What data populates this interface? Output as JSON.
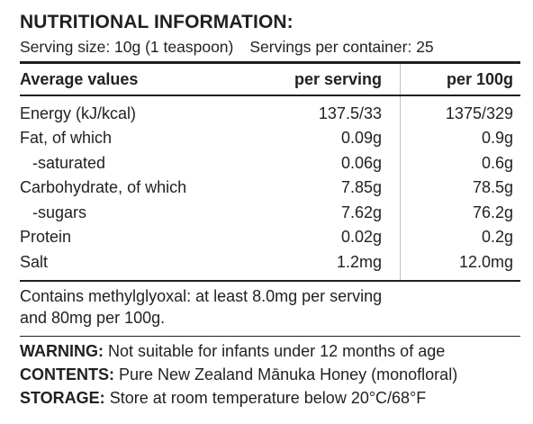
{
  "title": "NUTRITIONAL INFORMATION:",
  "serving": {
    "size": "Serving size: 10g (1 teaspoon)",
    "per_container": "Servings per container: 25"
  },
  "table": {
    "headers": {
      "name": "Average values",
      "per_serving": "per serving",
      "per_100g": "per 100g"
    },
    "rows": [
      {
        "label": "Energy (kJ/kcal)",
        "per_serving": "137.5/33",
        "per_100g": "1375/329"
      },
      {
        "label": "Fat, of which",
        "per_serving": "0.09g",
        "per_100g": "0.9g"
      },
      {
        "label": "-saturated",
        "per_serving": "0.06g",
        "per_100g": "0.6g"
      },
      {
        "label": "Carbohydrate, of which",
        "per_serving": "7.85g",
        "per_100g": "78.5g"
      },
      {
        "label": "-sugars",
        "per_serving": "7.62g",
        "per_100g": "76.2g"
      },
      {
        "label": "Protein",
        "per_serving": "0.02g",
        "per_100g": "0.2g"
      },
      {
        "label": "Salt",
        "per_serving": "1.2mg",
        "per_100g": "12.0mg"
      }
    ]
  },
  "note": {
    "line1": "Contains methylglyoxal: at least 8.0mg per serving",
    "line2": "and 80mg per 100g."
  },
  "info": {
    "warning_label": "WARNING:",
    "warning_text": " Not suitable for infants under 12 months of age",
    "contents_label": "CONTENTS:",
    "contents_text": " Pure New Zealand Mānuka Honey (monofloral)",
    "storage_label": "STORAGE:",
    "storage_text": " Store at room temperature below 20°C/68°F"
  }
}
